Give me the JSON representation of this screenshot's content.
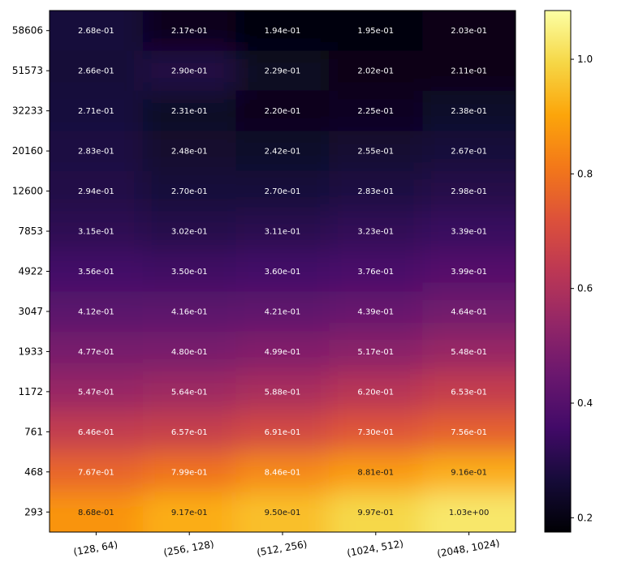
{
  "chart_data": {
    "type": "heatmap",
    "title": "",
    "xlabel": "",
    "ylabel": "",
    "colormap": "inferno",
    "x_categories": [
      "(128, 64)",
      "(256, 128)",
      "(512, 256)",
      "(1024, 512)",
      "(2048, 1024)"
    ],
    "y_categories": [
      "58606",
      "51573",
      "32233",
      "20160",
      "12600",
      "7853",
      "4922",
      "3047",
      "1933",
      "1172",
      "761",
      "468",
      "293"
    ],
    "values": [
      [
        0.268,
        0.217,
        0.194,
        0.195,
        0.203
      ],
      [
        0.266,
        0.29,
        0.229,
        0.202,
        0.211
      ],
      [
        0.271,
        0.231,
        0.22,
        0.225,
        0.238
      ],
      [
        0.283,
        0.248,
        0.242,
        0.255,
        0.267
      ],
      [
        0.294,
        0.27,
        0.27,
        0.283,
        0.298
      ],
      [
        0.315,
        0.302,
        0.311,
        0.323,
        0.339
      ],
      [
        0.356,
        0.35,
        0.36,
        0.376,
        0.399
      ],
      [
        0.412,
        0.416,
        0.421,
        0.439,
        0.464
      ],
      [
        0.477,
        0.48,
        0.499,
        0.517,
        0.548
      ],
      [
        0.547,
        0.564,
        0.588,
        0.62,
        0.653
      ],
      [
        0.646,
        0.657,
        0.691,
        0.73,
        0.756
      ],
      [
        0.767,
        0.799,
        0.846,
        0.881,
        0.916
      ],
      [
        0.868,
        0.917,
        0.95,
        0.997,
        1.03
      ]
    ],
    "labels": [
      [
        "2.68e-01",
        "2.17e-01",
        "1.94e-01",
        "1.95e-01",
        "2.03e-01"
      ],
      [
        "2.66e-01",
        "2.90e-01",
        "2.29e-01",
        "2.02e-01",
        "2.11e-01"
      ],
      [
        "2.71e-01",
        "2.31e-01",
        "2.20e-01",
        "2.25e-01",
        "2.38e-01"
      ],
      [
        "2.83e-01",
        "2.48e-01",
        "2.42e-01",
        "2.55e-01",
        "2.67e-01"
      ],
      [
        "2.94e-01",
        "2.70e-01",
        "2.70e-01",
        "2.83e-01",
        "2.98e-01"
      ],
      [
        "3.15e-01",
        "3.02e-01",
        "3.11e-01",
        "3.23e-01",
        "3.39e-01"
      ],
      [
        "3.56e-01",
        "3.50e-01",
        "3.60e-01",
        "3.76e-01",
        "3.99e-01"
      ],
      [
        "4.12e-01",
        "4.16e-01",
        "4.21e-01",
        "4.39e-01",
        "4.64e-01"
      ],
      [
        "4.77e-01",
        "4.80e-01",
        "4.99e-01",
        "5.17e-01",
        "5.48e-01"
      ],
      [
        "5.47e-01",
        "5.64e-01",
        "5.88e-01",
        "6.20e-01",
        "6.53e-01"
      ],
      [
        "6.46e-01",
        "6.57e-01",
        "6.91e-01",
        "7.30e-01",
        "7.56e-01"
      ],
      [
        "7.67e-01",
        "7.99e-01",
        "8.46e-01",
        "8.81e-01",
        "9.16e-01"
      ],
      [
        "8.68e-01",
        "9.17e-01",
        "9.50e-01",
        "9.97e-01",
        "1.03e+00"
      ]
    ],
    "colorbar": {
      "vmin": 0.175,
      "vmax": 1.085,
      "ticks": [
        0.2,
        0.4,
        0.6,
        0.8,
        1.0
      ],
      "tick_labels": [
        "0.2",
        "0.4",
        "0.6",
        "0.8",
        "1.0"
      ]
    }
  }
}
